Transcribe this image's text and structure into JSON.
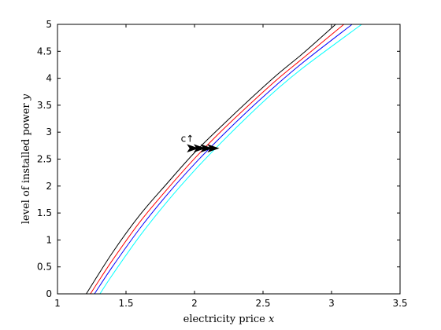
{
  "chart_data": {
    "type": "line",
    "title": "",
    "xlabel": {
      "text": "electricity price ",
      "var": "x"
    },
    "ylabel": {
      "text": "level of installed power ",
      "var": "y"
    },
    "xlim": [
      1,
      3.5
    ],
    "ylim": [
      0,
      5
    ],
    "xticks": [
      1,
      1.5,
      2,
      2.5,
      3,
      3.5
    ],
    "yticks": [
      0,
      0.5,
      1,
      1.5,
      2,
      2.5,
      3,
      3.5,
      4,
      4.5,
      5
    ],
    "xtick_labels": [
      "1",
      "1.5",
      "2",
      "2.5",
      "3",
      "3.5"
    ],
    "ytick_labels": [
      "0",
      "0.5",
      "1",
      "1.5",
      "2",
      "2.5",
      "3",
      "3.5",
      "4",
      "4.5",
      "5"
    ],
    "grid": false,
    "series": [
      {
        "color": "#000000",
        "x": [
          1.21,
          1.4,
          1.6,
          1.8,
          2.0,
          2.2,
          2.4,
          2.6,
          2.8,
          3.03
        ],
        "y": [
          0,
          0.76,
          1.46,
          2.05,
          2.62,
          3.12,
          3.6,
          4.06,
          4.48,
          5
        ]
      },
      {
        "color": "#ff0000",
        "x": [
          1.24,
          1.4,
          1.6,
          1.8,
          2.0,
          2.2,
          2.4,
          2.6,
          2.8,
          3.09
        ],
        "y": [
          0,
          0.62,
          1.33,
          1.94,
          2.51,
          3.03,
          3.51,
          3.97,
          4.39,
          5
        ]
      },
      {
        "color": "#0000ff",
        "x": [
          1.27,
          1.4,
          1.6,
          1.8,
          2.0,
          2.2,
          2.4,
          2.6,
          2.8,
          3.15
        ],
        "y": [
          0,
          0.5,
          1.21,
          1.84,
          2.41,
          2.93,
          3.42,
          3.88,
          4.31,
          5
        ]
      },
      {
        "color": "#00ffff",
        "x": [
          1.31,
          1.4,
          1.6,
          1.8,
          2.0,
          2.2,
          2.4,
          2.6,
          2.8,
          3.22
        ],
        "y": [
          0,
          0.35,
          1.07,
          1.71,
          2.29,
          2.82,
          3.32,
          3.79,
          4.21,
          5
        ]
      }
    ],
    "arrows": [
      {
        "x": 1.99,
        "y": 2.7
      },
      {
        "x": 2.04,
        "y": 2.7
      },
      {
        "x": 2.09,
        "y": 2.7
      },
      {
        "x": 2.14,
        "y": 2.7
      }
    ],
    "annotation": {
      "text": "c↑",
      "x": 1.9,
      "y": 2.88
    }
  }
}
